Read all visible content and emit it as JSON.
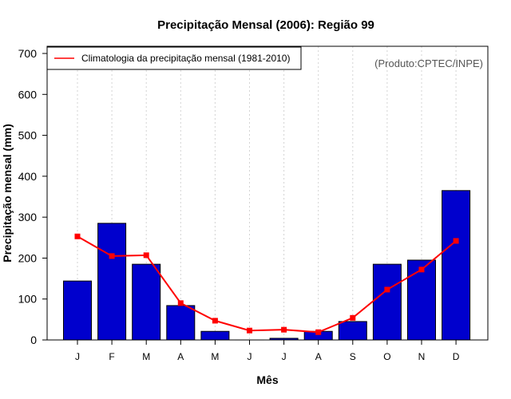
{
  "chart_data": {
    "type": "bar",
    "title": "Precipitação Mensal (2006): Região 99",
    "xlabel": "Mês",
    "ylabel": "Precipitação mensal (mm)",
    "categories": [
      "J",
      "F",
      "M",
      "A",
      "M",
      "J",
      "J",
      "A",
      "S",
      "O",
      "N",
      "D"
    ],
    "ylim": [
      0,
      700
    ],
    "yticks": [
      0,
      100,
      200,
      300,
      400,
      500,
      600,
      700
    ],
    "grid": "vertical dotted",
    "series": [
      {
        "name": "Precipitação mensal 2006",
        "type": "bar",
        "color": "#0000CD",
        "values": [
          144,
          285,
          185,
          84,
          21,
          0,
          4,
          21,
          45,
          185,
          195,
          365
        ]
      },
      {
        "name": "Climatologia da precipitação mensal (1981-2010)",
        "type": "line",
        "color": "#FF0000",
        "values": [
          253,
          205,
          207,
          90,
          47,
          23,
          25,
          19,
          54,
          123,
          172,
          242
        ]
      }
    ],
    "legend": {
      "placement": "top-left",
      "entries": [
        "Climatologia da precipitação mensal (1981-2010)"
      ]
    },
    "annotations": [
      "(Produto:CPTEC/INPE)"
    ]
  }
}
